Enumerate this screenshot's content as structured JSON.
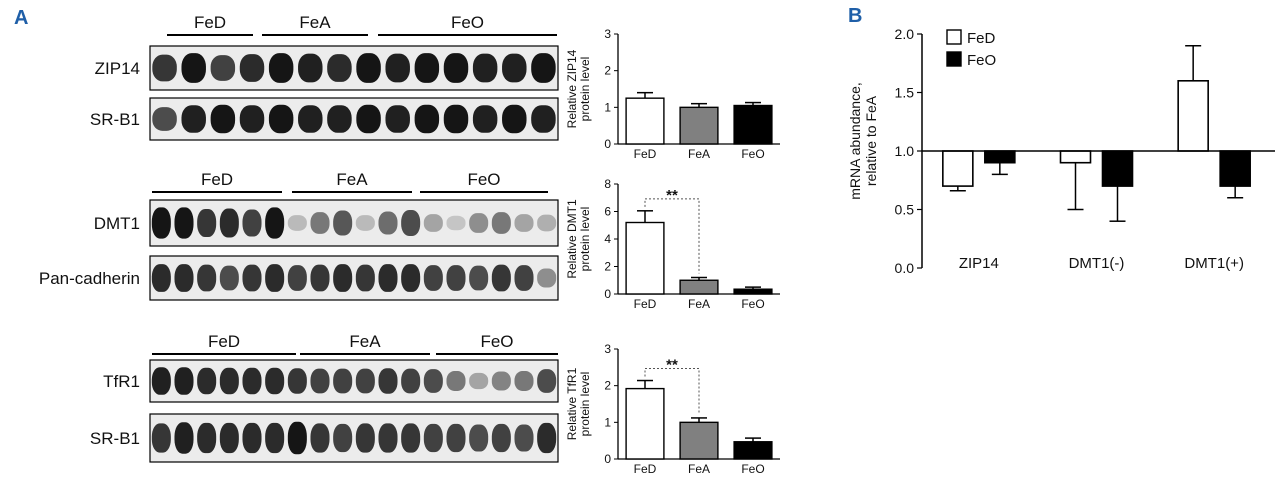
{
  "panel_a": {
    "letter": "A",
    "blots": [
      {
        "groups": [
          "FeD",
          "FeA",
          "FeO"
        ],
        "rows": [
          {
            "label": "ZIP14",
            "intensity": [
              0.8,
              0.95,
              0.75,
              0.85,
              0.95,
              0.9,
              0.85,
              0.95,
              0.9,
              0.95,
              0.95,
              0.9,
              0.9,
              0.95
            ]
          },
          {
            "label": "SR-B1",
            "intensity": [
              0.7,
              0.9,
              0.95,
              0.9,
              0.95,
              0.9,
              0.9,
              0.95,
              0.9,
              0.95,
              0.95,
              0.9,
              0.95,
              0.9
            ]
          }
        ]
      },
      {
        "groups": [
          "FeD",
          "FeA",
          "FeO"
        ],
        "rows": [
          {
            "label": "DMT1",
            "intensity": [
              0.95,
              0.95,
              0.8,
              0.85,
              0.75,
              0.95,
              0.2,
              0.5,
              0.65,
              0.2,
              0.55,
              0.7,
              0.3,
              0.15,
              0.4,
              0.5,
              0.3,
              0.25
            ]
          },
          {
            "label": "Pan-cadherin",
            "intensity": [
              0.85,
              0.85,
              0.8,
              0.7,
              0.8,
              0.85,
              0.75,
              0.8,
              0.85,
              0.8,
              0.85,
              0.85,
              0.75,
              0.75,
              0.7,
              0.8,
              0.75,
              0.4
            ]
          }
        ]
      },
      {
        "groups": [
          "FeD",
          "FeA",
          "FeO"
        ],
        "rows": [
          {
            "label": "TfR1",
            "intensity": [
              0.9,
              0.9,
              0.85,
              0.85,
              0.85,
              0.85,
              0.8,
              0.75,
              0.75,
              0.75,
              0.8,
              0.75,
              0.7,
              0.5,
              0.3,
              0.45,
              0.5,
              0.7
            ]
          },
          {
            "label": "SR-B1",
            "intensity": [
              0.8,
              0.9,
              0.85,
              0.85,
              0.85,
              0.85,
              0.95,
              0.8,
              0.75,
              0.8,
              0.8,
              0.8,
              0.75,
              0.75,
              0.7,
              0.75,
              0.7,
              0.85
            ]
          }
        ]
      }
    ]
  },
  "panel_b": {
    "letter": "B"
  },
  "chart_data": [
    {
      "type": "bar",
      "categories": [
        "FeD",
        "FeA",
        "FeO"
      ],
      "values": [
        1.25,
        1.0,
        1.05
      ],
      "errors": [
        0.15,
        0.1,
        0.08
      ],
      "ylabel_lines": [
        "Relative ZIP14",
        "protein level"
      ],
      "ylim": [
        0,
        3
      ],
      "yticks": [
        0,
        1,
        2,
        3
      ],
      "colors": [
        "#ffffff",
        "#808080",
        "#000000"
      ],
      "significance": null
    },
    {
      "type": "bar",
      "categories": [
        "FeD",
        "FeA",
        "FeO"
      ],
      "values": [
        5.2,
        1.0,
        0.35
      ],
      "errors": [
        0.85,
        0.2,
        0.15
      ],
      "ylabel_lines": [
        "Relative DMT1",
        "protein level"
      ],
      "ylim": [
        0,
        8
      ],
      "yticks": [
        0,
        2,
        4,
        6,
        8
      ],
      "colors": [
        "#ffffff",
        "#808080",
        "#000000"
      ],
      "significance": "**"
    },
    {
      "type": "bar",
      "categories": [
        "FeD",
        "FeA",
        "FeO"
      ],
      "values": [
        1.92,
        1.0,
        0.47
      ],
      "errors": [
        0.22,
        0.12,
        0.1
      ],
      "ylabel_lines": [
        "Relative TfR1",
        "protein level"
      ],
      "ylim": [
        0,
        3
      ],
      "yticks": [
        0,
        1,
        2,
        3
      ],
      "colors": [
        "#ffffff",
        "#808080",
        "#000000"
      ],
      "significance": "**"
    },
    {
      "type": "bar",
      "categories": [
        "ZIP14",
        "DMT1(-)",
        "DMT1(+)"
      ],
      "baseline": 1.0,
      "series": [
        {
          "name": "FeD",
          "color": "#ffffff",
          "values": [
            0.7,
            0.9,
            1.6
          ],
          "errors": [
            0.04,
            0.4,
            0.3
          ]
        },
        {
          "name": "FeO",
          "color": "#000000",
          "values": [
            0.9,
            0.7,
            0.7
          ],
          "errors": [
            0.1,
            0.3,
            0.1
          ]
        }
      ],
      "ylabel_lines": [
        "mRNA abundance,",
        "relative to FeA"
      ],
      "ylim": [
        0,
        2
      ],
      "yticks": [
        "0.0",
        "0.5",
        "1.0",
        "1.5",
        "2.0"
      ]
    }
  ]
}
